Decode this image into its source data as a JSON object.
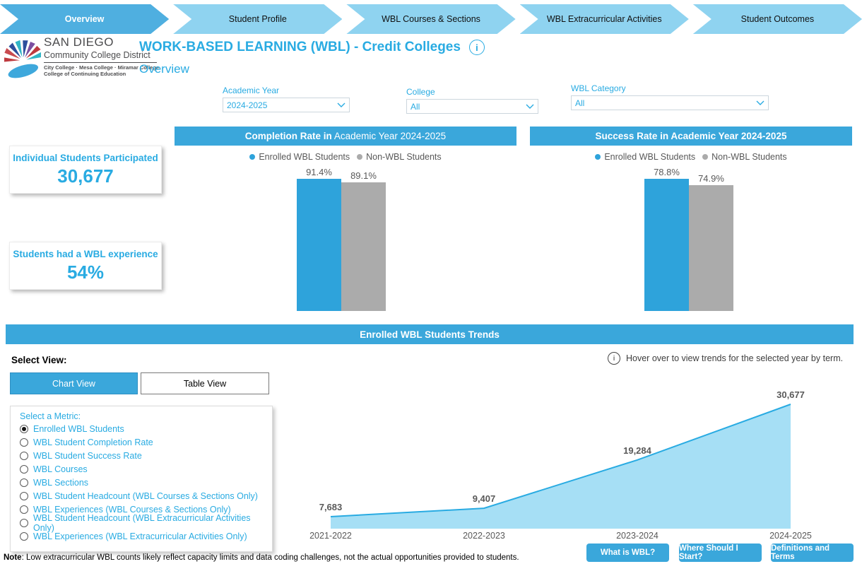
{
  "nav": {
    "tabs": [
      {
        "label": "Overview",
        "active": true
      },
      {
        "label": "Student Profile",
        "active": false
      },
      {
        "label": "WBL Courses & Sections",
        "active": false
      },
      {
        "label": "WBL Extracurricular Activities",
        "active": false
      },
      {
        "label": "Student Outcomes",
        "active": false
      }
    ]
  },
  "logo": {
    "org": "SAN DIEGO",
    "org2": "Community College District",
    "colleges": "City College · Mesa College · Miramar College",
    "colleges2": "College of Continuing Education"
  },
  "header": {
    "title": "WORK-BASED LEARNING (WBL) - Credit Colleges",
    "subtitle": "Overview",
    "info_icon": "i"
  },
  "filters": [
    {
      "label": "Academic Year",
      "value": "2024-2025"
    },
    {
      "label": "College",
      "value": "All"
    },
    {
      "label": "WBL Category",
      "value": "All"
    }
  ],
  "kpis": [
    {
      "label": "Individual Students Participated",
      "value": "30,677"
    },
    {
      "label": "Students had a WBL experience",
      "value": "54%"
    }
  ],
  "charts_ui": {
    "completion_title_bold": "Completion Rate in",
    "completion_title_rest": " Academic Year 2024-2025",
    "success_title_bold": "Success Rate in Academic Year 2024-2025",
    "success_title_rest": ""
  },
  "chart_data": [
    {
      "type": "bar",
      "title": "Completion Rate in Academic Year 2024-2025",
      "categories": [
        "Enrolled WBL Students",
        "Non-WBL Students"
      ],
      "values": [
        91.4,
        89.1
      ],
      "value_labels": [
        "91.4%",
        "89.1%"
      ],
      "unit": "%",
      "colors": [
        "#2EA3DB",
        "#ABABAB"
      ],
      "legend_position": "top",
      "ylim": [
        0,
        100
      ],
      "xlabel": "",
      "ylabel": ""
    },
    {
      "type": "bar",
      "title": "Success Rate in Academic Year 2024-2025",
      "categories": [
        "Enrolled WBL Students",
        "Non-WBL Students"
      ],
      "values": [
        78.8,
        74.9
      ],
      "value_labels": [
        "78.8%",
        "74.9%"
      ],
      "unit": "%",
      "colors": [
        "#2EA3DB",
        "#ABABAB"
      ],
      "legend_position": "top",
      "ylim": [
        0,
        100
      ],
      "xlabel": "",
      "ylabel": ""
    },
    {
      "type": "area",
      "title": "Enrolled WBL Students Trends",
      "x": [
        "2021-2022",
        "2022-2023",
        "2023-2024",
        "2024-2025"
      ],
      "values": [
        7683,
        9407,
        19284,
        30677
      ],
      "labels": [
        "7,683",
        "9,407",
        "19,284",
        "30,677"
      ],
      "fill_color": "#A6DFF5",
      "line_color": "#29ABE2",
      "grid": false,
      "xlabel": "",
      "ylabel": ""
    }
  ],
  "trends": {
    "banner": "Enrolled WBL Students Trends",
    "hint": "Hover over to view trends for the selected year by term.",
    "select_view_label": "Select View:",
    "views": [
      "Chart View",
      "Table View"
    ],
    "selected_view": "Chart View",
    "metric_label": "Select a Metric:",
    "metrics": [
      "Enrolled WBL Students",
      "WBL Student Completion Rate",
      "WBL Student Success Rate",
      "WBL Courses",
      "WBL Sections",
      "WBL Student Headcount (WBL Courses & Sections Only)",
      "WBL Experiences (WBL Courses & Sections Only)",
      "WBL Student Headcount (WBL Extracurricular Activities Only)",
      "WBL Experiences (WBL Extracurricular Activities Only)"
    ],
    "selected_index": 0
  },
  "footer": {
    "buttons": [
      "What is WBL?",
      "Where Should I Start?",
      "Definitions and Terms"
    ],
    "note_bold": "Note",
    "note_rest": ": Low extracurricular WBL counts likely reflect capacity limits and data coding challenges, not the actual opportunities provided to students."
  },
  "colors": {
    "banner_blue": "#3AA7DB",
    "tab_blue": "#8FD3F0",
    "active_tab_blue": "#4FAFE0",
    "accent_text_blue": "#29ABE2",
    "bar_blue": "#2EA3DB",
    "bar_gray": "#ABABAB",
    "area_fill": "#A6DFF5",
    "area_line": "#29ABE2"
  }
}
